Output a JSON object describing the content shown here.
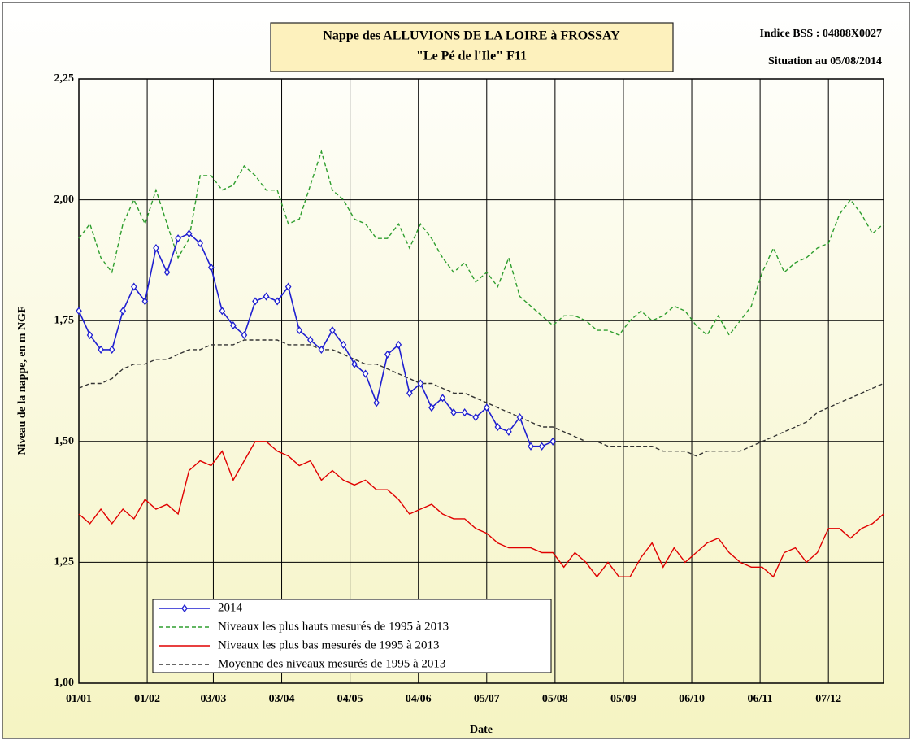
{
  "chart_data": {
    "type": "line",
    "title": "Nappe des ALLUVIONS DE LA LOIRE à FROSSAY",
    "subtitle": "\"Le Pé de l'Ile\" F11",
    "annotations": [
      "Indice BSS : 04808X0027",
      "Situation au 05/08/2014"
    ],
    "xlabel": "Date",
    "ylabel": "Niveau de la nappe, en m NGF",
    "x": [
      0,
      5,
      10,
      15,
      20,
      25,
      30,
      35,
      40,
      45,
      50,
      55,
      60,
      65,
      70,
      75,
      80,
      85,
      90,
      95,
      100,
      105,
      110,
      115,
      120,
      125,
      130,
      135,
      140,
      145,
      150,
      155,
      160,
      165,
      170,
      175,
      180,
      185,
      190,
      195,
      200,
      205,
      210,
      215,
      220,
      225,
      230,
      235,
      240,
      245,
      250,
      255,
      260,
      265,
      270,
      275,
      280,
      285,
      290,
      295,
      300,
      305,
      310,
      315,
      320,
      325,
      330,
      335,
      340,
      345,
      350,
      355,
      360,
      365
    ],
    "xlim": [
      0,
      365
    ],
    "xticks": [
      {
        "value": 0,
        "label": "01/01"
      },
      {
        "value": 31,
        "label": "01/02"
      },
      {
        "value": 61,
        "label": "03/03"
      },
      {
        "value": 92,
        "label": "03/04"
      },
      {
        "value": 123,
        "label": "04/05"
      },
      {
        "value": 154,
        "label": "04/06"
      },
      {
        "value": 185,
        "label": "05/07"
      },
      {
        "value": 216,
        "label": "05/08"
      },
      {
        "value": 247,
        "label": "05/09"
      },
      {
        "value": 278,
        "label": "06/10"
      },
      {
        "value": 309,
        "label": "06/11"
      },
      {
        "value": 340,
        "label": "07/12"
      }
    ],
    "ylim": [
      1.0,
      2.25
    ],
    "yticks": [
      {
        "value": 1.0,
        "label": "1,00"
      },
      {
        "value": 1.25,
        "label": "1,25"
      },
      {
        "value": 1.5,
        "label": "1,50"
      },
      {
        "value": 1.75,
        "label": "1,75"
      },
      {
        "value": 2.0,
        "label": "2,00"
      },
      {
        "value": 2.25,
        "label": "2,25"
      }
    ],
    "grid": true,
    "legend": "bottom-left",
    "series": [
      {
        "name": "2014",
        "color": "#1f1fd0",
        "marker": "diamond",
        "dashed": false,
        "values": [
          1.77,
          1.72,
          1.69,
          1.69,
          1.77,
          1.82,
          1.79,
          1.9,
          1.85,
          1.92,
          1.93,
          1.91,
          1.86,
          1.77,
          1.74,
          1.72,
          1.79,
          1.8,
          1.79,
          1.82,
          1.73,
          1.71,
          1.69,
          1.73,
          1.7,
          1.66,
          1.64,
          1.58,
          1.68,
          1.7,
          1.6,
          1.62,
          1.57,
          1.59,
          1.56,
          1.56,
          1.55,
          1.57,
          1.53,
          1.52,
          1.55,
          1.49,
          1.49,
          1.5,
          null,
          null,
          null,
          null,
          null,
          null,
          null,
          null,
          null,
          null,
          null,
          null,
          null,
          null,
          null,
          null,
          null,
          null,
          null,
          null,
          null,
          null,
          null,
          null,
          null,
          null,
          null,
          null,
          null,
          null
        ]
      },
      {
        "name": "Niveaux les plus hauts mesurés de 1995 à 2013",
        "color": "#2e9e2e",
        "dashed": true,
        "values": [
          1.92,
          1.95,
          1.88,
          1.85,
          1.95,
          2.0,
          1.95,
          2.02,
          1.95,
          1.88,
          1.92,
          2.05,
          2.05,
          2.02,
          2.03,
          2.07,
          2.05,
          2.02,
          2.02,
          1.95,
          1.96,
          2.03,
          2.1,
          2.02,
          2.0,
          1.96,
          1.95,
          1.92,
          1.92,
          1.95,
          1.9,
          1.95,
          1.92,
          1.88,
          1.85,
          1.87,
          1.83,
          1.85,
          1.82,
          1.88,
          1.8,
          1.78,
          1.76,
          1.74,
          1.76,
          1.76,
          1.75,
          1.73,
          1.73,
          1.72,
          1.75,
          1.77,
          1.75,
          1.76,
          1.78,
          1.77,
          1.74,
          1.72,
          1.76,
          1.72,
          1.75,
          1.78,
          1.85,
          1.9,
          1.85,
          1.87,
          1.88,
          1.9,
          1.91,
          1.97,
          2.0,
          1.97,
          1.93,
          1.95
        ]
      },
      {
        "name": "Niveaux les plus bas mesurés de 1995 à 2013",
        "color": "#e00000",
        "dashed": false,
        "values": [
          1.35,
          1.33,
          1.36,
          1.33,
          1.36,
          1.34,
          1.38,
          1.36,
          1.37,
          1.35,
          1.44,
          1.46,
          1.45,
          1.48,
          1.42,
          1.46,
          1.5,
          1.5,
          1.48,
          1.47,
          1.45,
          1.46,
          1.42,
          1.44,
          1.42,
          1.41,
          1.42,
          1.4,
          1.4,
          1.38,
          1.35,
          1.36,
          1.37,
          1.35,
          1.34,
          1.34,
          1.32,
          1.31,
          1.29,
          1.28,
          1.28,
          1.28,
          1.27,
          1.27,
          1.24,
          1.27,
          1.25,
          1.22,
          1.25,
          1.22,
          1.22,
          1.26,
          1.29,
          1.24,
          1.28,
          1.25,
          1.27,
          1.29,
          1.3,
          1.27,
          1.25,
          1.24,
          1.24,
          1.22,
          1.27,
          1.28,
          1.25,
          1.27,
          1.32,
          1.32,
          1.3,
          1.32,
          1.33,
          1.35
        ]
      },
      {
        "name": "Moyenne des niveaux mesurés de 1995 à 2013",
        "color": "#333333",
        "dashed": true,
        "values": [
          1.61,
          1.62,
          1.62,
          1.63,
          1.65,
          1.66,
          1.66,
          1.67,
          1.67,
          1.68,
          1.69,
          1.69,
          1.7,
          1.7,
          1.7,
          1.71,
          1.71,
          1.71,
          1.71,
          1.7,
          1.7,
          1.7,
          1.69,
          1.69,
          1.68,
          1.67,
          1.66,
          1.66,
          1.65,
          1.64,
          1.63,
          1.62,
          1.62,
          1.61,
          1.6,
          1.6,
          1.59,
          1.58,
          1.57,
          1.56,
          1.55,
          1.54,
          1.53,
          1.53,
          1.52,
          1.51,
          1.5,
          1.5,
          1.49,
          1.49,
          1.49,
          1.49,
          1.49,
          1.48,
          1.48,
          1.48,
          1.47,
          1.48,
          1.48,
          1.48,
          1.48,
          1.49,
          1.5,
          1.51,
          1.52,
          1.53,
          1.54,
          1.56,
          1.57,
          1.58,
          1.59,
          1.6,
          1.61,
          1.62
        ]
      }
    ]
  }
}
